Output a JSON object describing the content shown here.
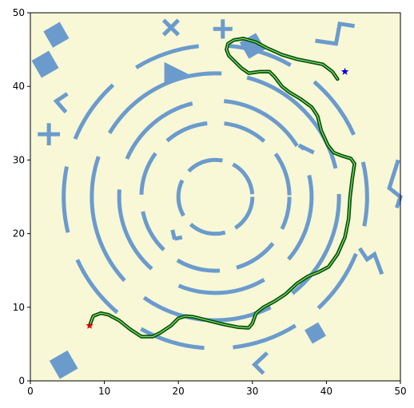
{
  "colors": {
    "background": "#f8f8d6",
    "obstacle": "#6b9bcd",
    "path_outer": "#0a4d0a",
    "path_inner": "#22b022",
    "start": "#e00000",
    "goal": "#0000e0"
  },
  "axes": {
    "xlim": [
      0,
      50
    ],
    "ylim": [
      0,
      50
    ],
    "xticks": [
      "0",
      "10",
      "20",
      "30",
      "40",
      "50"
    ],
    "yticks": [
      "0",
      "10",
      "20",
      "30",
      "40",
      "50"
    ]
  },
  "markers": {
    "start": {
      "x": 8,
      "y": 7.5,
      "shape": "star"
    },
    "goal": {
      "x": 42.5,
      "y": 42,
      "shape": "star"
    }
  },
  "path": [
    [
      8,
      7.5
    ],
    [
      8.5,
      8.8
    ],
    [
      9.5,
      9.2
    ],
    [
      10.5,
      9
    ],
    [
      12,
      8.2
    ],
    [
      13.5,
      7
    ],
    [
      15,
      6
    ],
    [
      16.5,
      6
    ],
    [
      17.5,
      6.5
    ],
    [
      19,
      7.5
    ],
    [
      20,
      8.5
    ],
    [
      21,
      8.8
    ],
    [
      22,
      8.7
    ],
    [
      24,
      8.2
    ],
    [
      26,
      7.7
    ],
    [
      28,
      7.3
    ],
    [
      29.5,
      7.2
    ],
    [
      30,
      7.8
    ],
    [
      30.5,
      9.2
    ],
    [
      31.5,
      10
    ],
    [
      33,
      10.8
    ],
    [
      34.5,
      11.8
    ],
    [
      36,
      13.2
    ],
    [
      37.5,
      14.2
    ],
    [
      39,
      14.8
    ],
    [
      40.3,
      15.5
    ],
    [
      41.5,
      17.2
    ],
    [
      42.5,
      19.5
    ],
    [
      43,
      22
    ],
    [
      43.2,
      25
    ],
    [
      43.5,
      27.5
    ],
    [
      43.8,
      29.5
    ],
    [
      43.3,
      30.2
    ],
    [
      42,
      30.6
    ],
    [
      41,
      31
    ],
    [
      40.2,
      32
    ],
    [
      39.3,
      34
    ],
    [
      38.8,
      36
    ],
    [
      38,
      37.2
    ],
    [
      36.5,
      38.3
    ],
    [
      35,
      39.2
    ],
    [
      34,
      40
    ],
    [
      33,
      41.3
    ],
    [
      32.3,
      42
    ],
    [
      31,
      42
    ],
    [
      29.5,
      41.8
    ],
    [
      28.5,
      42.5
    ],
    [
      27.5,
      43.5
    ],
    [
      26.8,
      44.2
    ],
    [
      26.5,
      45
    ],
    [
      26.7,
      45.8
    ],
    [
      27.5,
      46.3
    ],
    [
      28.8,
      46.5
    ],
    [
      30.5,
      46
    ],
    [
      32,
      45.2
    ],
    [
      34,
      44.3
    ],
    [
      36,
      43.7
    ],
    [
      38,
      43.3
    ],
    [
      39.5,
      43
    ],
    [
      40.8,
      42
    ],
    [
      41.5,
      41
    ]
  ],
  "rings": [
    {
      "cx": 25,
      "cy": 25,
      "r": 5,
      "dash": [
        5,
        1.5
      ],
      "offset": 0
    },
    {
      "cx": 25,
      "cy": 25,
      "r": 10,
      "dash": [
        6,
        2.3
      ],
      "offset": 1.5
    },
    {
      "cx": 25,
      "cy": 25,
      "r": 13,
      "dash": [
        12,
        4.3
      ],
      "offset": 2.8
    },
    {
      "cx": 25,
      "cy": 25,
      "r": 16.7,
      "dash": [
        18,
        3.5
      ],
      "offset": 3
    },
    {
      "cx": 25,
      "cy": 25,
      "r": 20.5,
      "dash": [
        9,
        3.9
      ],
      "offset": 5
    }
  ],
  "obstacles": [
    {
      "kind": "diamond",
      "x": 3.5,
      "y": 47,
      "size": 1.8
    },
    {
      "kind": "diamond",
      "x": 2,
      "y": 43,
      "size": 1.9
    },
    {
      "kind": "diamond",
      "x": 30,
      "y": 45.5,
      "size": 1.8
    },
    {
      "kind": "diamond",
      "x": 38.5,
      "y": 6.5,
      "size": 1.5
    },
    {
      "kind": "diamond",
      "x": 4.5,
      "y": 2.2,
      "size": 2
    },
    {
      "kind": "triangle",
      "x": 19,
      "y": 41.5,
      "size": 1.8
    },
    {
      "kind": "x",
      "x": 19,
      "y": 48,
      "size": 1
    },
    {
      "kind": "plus",
      "x": 26,
      "y": 47.8,
      "size": 1.3
    },
    {
      "kind": "plus",
      "x": 2.5,
      "y": 33.5,
      "size": 1.5
    },
    {
      "kind": "chevron",
      "points": [
        [
          5,
          39
        ],
        [
          3.5,
          38
        ],
        [
          4.8,
          36.5
        ]
      ]
    },
    {
      "kind": "chevron",
      "points": [
        [
          32,
          3.8
        ],
        [
          30.3,
          2.2
        ],
        [
          31.5,
          1
        ]
      ]
    },
    {
      "kind": "chevron",
      "points": [
        [
          37,
          31.5
        ],
        [
          36.3,
          32
        ],
        [
          38.3,
          31
        ]
      ]
    },
    {
      "kind": "polyline",
      "points": [
        [
          38.5,
          46.2
        ],
        [
          41.3,
          45.8
        ],
        [
          41.8,
          48.5
        ],
        [
          43.8,
          48.2
        ]
      ]
    },
    {
      "kind": "polyline",
      "points": [
        [
          49.7,
          30
        ],
        [
          48.5,
          26.2
        ],
        [
          50,
          25
        ],
        [
          49.5,
          23.5
        ]
      ]
    },
    {
      "kind": "polyline",
      "points": [
        [
          44.5,
          18
        ],
        [
          45.5,
          16.5
        ],
        [
          46.5,
          17.2
        ],
        [
          47.5,
          14.5
        ]
      ]
    },
    {
      "kind": "polyline",
      "points": [
        [
          19.5,
          19.2
        ],
        [
          19.2,
          20.5
        ]
      ]
    },
    {
      "kind": "polyline",
      "points": [
        [
          19.5,
          19.3
        ],
        [
          20.5,
          19.5
        ]
      ]
    }
  ]
}
